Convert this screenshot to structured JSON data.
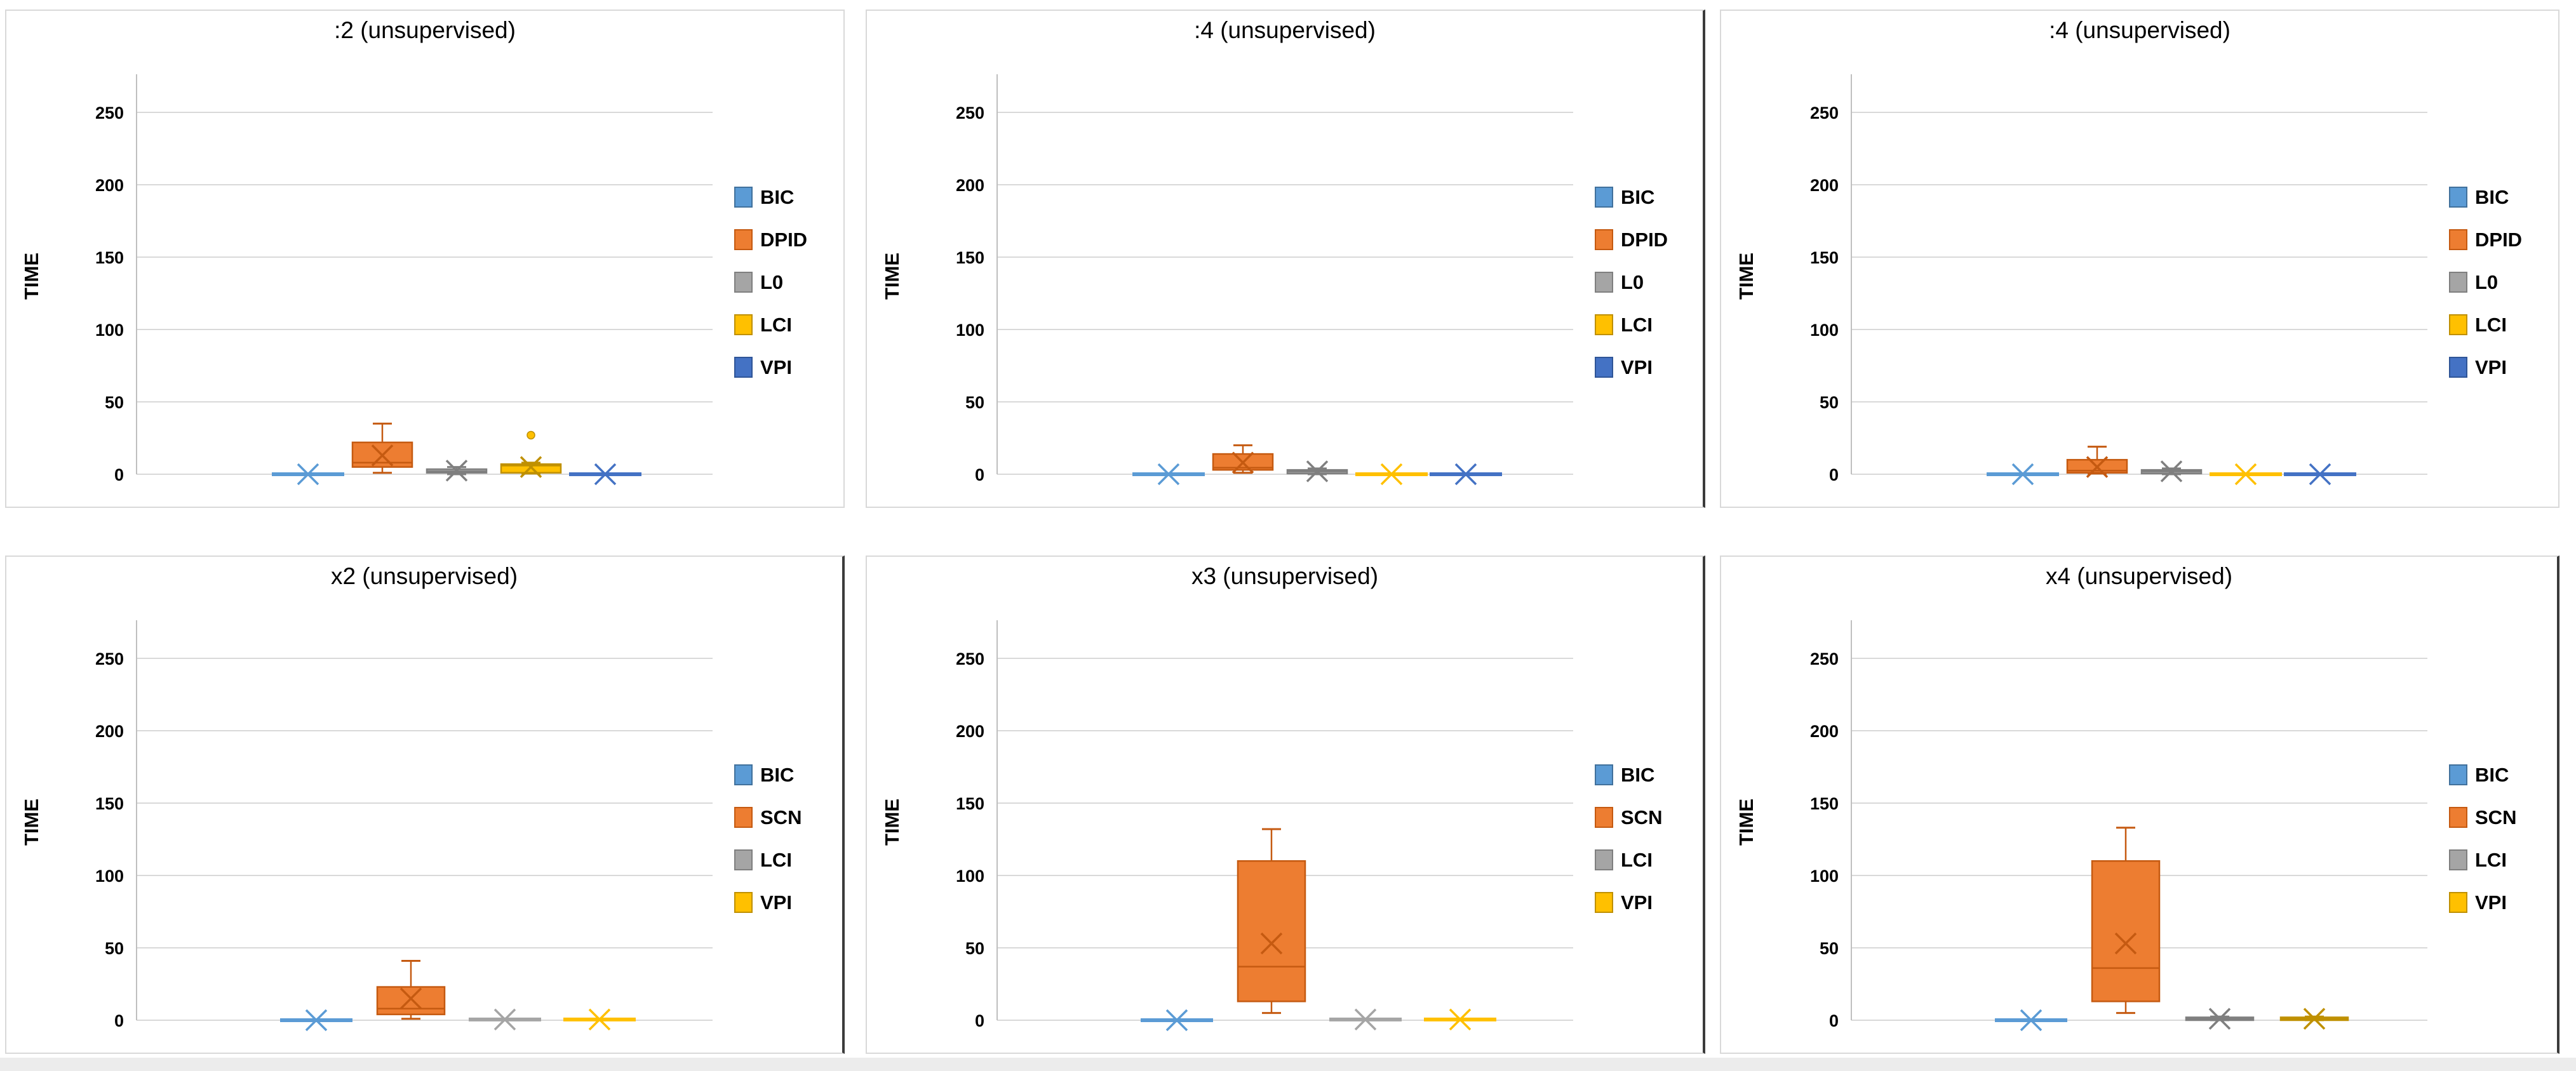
{
  "page": {
    "background": "#ffffff",
    "grid_rows": 2,
    "grid_cols": 3
  },
  "colors": {
    "blue": "#5B9BD5",
    "orange": "#ED7D31",
    "gray": "#A5A5A5",
    "gold": "#FFC000",
    "dark_blue": "#4472C4",
    "gridline": "#D9D9D9",
    "axis": "#BFBFBF",
    "panel_border": "#D9D9D9",
    "panel_border_dark": "#3B3B3B"
  },
  "chart_data": [
    {
      "type": "box",
      "title": ":2 (unsupervised)",
      "ylabel": "TIME",
      "yticks": [
        0,
        50,
        100,
        150,
        200,
        250
      ],
      "ylim": [
        0,
        270
      ],
      "grid": true,
      "legend_position": "right",
      "series": [
        {
          "name": "BIC",
          "fill": "#5B9BD5",
          "stroke": "#41719C",
          "kind": "flat",
          "value": 0,
          "mean": 0
        },
        {
          "name": "DPID",
          "fill": "#ED7D31",
          "stroke": "#C55A11",
          "kind": "box",
          "low": 1,
          "q1": 5,
          "median": 8,
          "q3": 22,
          "high": 35,
          "mean": 13
        },
        {
          "name": "L0",
          "fill": "#A5A5A5",
          "stroke": "#7F7F7F",
          "kind": "box",
          "low": 0,
          "q1": 1,
          "median": 2,
          "q3": 3.5,
          "high": 5,
          "mean": 2.5
        },
        {
          "name": "LCI",
          "fill": "#FFC000",
          "stroke": "#BF9000",
          "kind": "box",
          "low": 0.5,
          "q1": 1,
          "median": 6,
          "q3": 7,
          "high": 8,
          "mean": 5,
          "outliers": [
            27
          ]
        },
        {
          "name": "VPI",
          "fill": "#4472C4",
          "stroke": "#2F5597",
          "kind": "flat",
          "value": 0,
          "mean": 0
        }
      ]
    },
    {
      "type": "box",
      "title": ":4 (unsupervised)",
      "ylabel": "TIME",
      "yticks": [
        0,
        50,
        100,
        150,
        200,
        250
      ],
      "ylim": [
        0,
        270
      ],
      "grid": true,
      "legend_position": "right",
      "series": [
        {
          "name": "BIC",
          "fill": "#5B9BD5",
          "stroke": "#41719C",
          "kind": "flat",
          "value": 0,
          "mean": 0
        },
        {
          "name": "DPID",
          "fill": "#ED7D31",
          "stroke": "#C55A11",
          "kind": "box",
          "low": 1,
          "q1": 3,
          "median": 4.5,
          "q3": 14,
          "high": 20,
          "mean": 8
        },
        {
          "name": "L0",
          "fill": "#A5A5A5",
          "stroke": "#7F7F7F",
          "kind": "box",
          "low": 0,
          "q1": 0.5,
          "median": 2,
          "q3": 3,
          "high": 4,
          "mean": 2
        },
        {
          "name": "LCI",
          "fill": "#FFC000",
          "stroke": "#BF9000",
          "kind": "flat",
          "value": 0,
          "mean": 0
        },
        {
          "name": "VPI",
          "fill": "#4472C4",
          "stroke": "#2F5597",
          "kind": "flat",
          "value": 0,
          "mean": 0
        }
      ]
    },
    {
      "type": "box",
      "title": ":4 (unsupervised)",
      "ylabel": "TIME",
      "yticks": [
        0,
        50,
        100,
        150,
        200,
        250
      ],
      "ylim": [
        0,
        270
      ],
      "grid": true,
      "legend_position": "right",
      "series": [
        {
          "name": "BIC",
          "fill": "#5B9BD5",
          "stroke": "#41719C",
          "kind": "flat",
          "value": 0,
          "mean": 0
        },
        {
          "name": "DPID",
          "fill": "#ED7D31",
          "stroke": "#C55A11",
          "kind": "box",
          "low": 0.5,
          "q1": 1,
          "median": 2.5,
          "q3": 10,
          "high": 19,
          "mean": 5
        },
        {
          "name": "L0",
          "fill": "#A5A5A5",
          "stroke": "#7F7F7F",
          "kind": "box",
          "low": 0,
          "q1": 0.5,
          "median": 2,
          "q3": 3,
          "high": 4,
          "mean": 2
        },
        {
          "name": "LCI",
          "fill": "#FFC000",
          "stroke": "#BF9000",
          "kind": "flat",
          "value": 0,
          "mean": 0
        },
        {
          "name": "VPI",
          "fill": "#4472C4",
          "stroke": "#2F5597",
          "kind": "flat",
          "value": 0,
          "mean": 0
        }
      ]
    },
    {
      "type": "box",
      "title": "x2 (unsupervised)",
      "ylabel": "TIME",
      "yticks": [
        0,
        50,
        100,
        150,
        200,
        250
      ],
      "ylim": [
        0,
        270
      ],
      "grid": true,
      "legend_position": "right",
      "series": [
        {
          "name": "BIC",
          "fill": "#5B9BD5",
          "stroke": "#41719C",
          "kind": "flat",
          "value": 0,
          "mean": 0
        },
        {
          "name": "SCN",
          "fill": "#ED7D31",
          "stroke": "#C55A11",
          "kind": "box",
          "low": 1,
          "q1": 4,
          "median": 8,
          "q3": 23,
          "high": 41,
          "mean": 15
        },
        {
          "name": "LCI",
          "fill": "#A5A5A5",
          "stroke": "#7F7F7F",
          "kind": "flat",
          "value": 0.5,
          "mean": 0.5
        },
        {
          "name": "VPI",
          "fill": "#FFC000",
          "stroke": "#BF9000",
          "kind": "flat",
          "value": 0.5,
          "mean": 0.5
        }
      ]
    },
    {
      "type": "box",
      "title": "x3 (unsupervised)",
      "ylabel": "TIME",
      "yticks": [
        0,
        50,
        100,
        150,
        200,
        250
      ],
      "ylim": [
        0,
        270
      ],
      "grid": true,
      "legend_position": "right",
      "series": [
        {
          "name": "BIC",
          "fill": "#5B9BD5",
          "stroke": "#41719C",
          "kind": "flat",
          "value": 0,
          "mean": 0
        },
        {
          "name": "SCN",
          "fill": "#ED7D31",
          "stroke": "#C55A11",
          "kind": "box",
          "low": 5,
          "q1": 13,
          "median": 37,
          "q3": 110,
          "high": 132,
          "mean": 53
        },
        {
          "name": "LCI",
          "fill": "#A5A5A5",
          "stroke": "#7F7F7F",
          "kind": "flat",
          "value": 0.5,
          "mean": 0.5
        },
        {
          "name": "VPI",
          "fill": "#FFC000",
          "stroke": "#BF9000",
          "kind": "flat",
          "value": 0.5,
          "mean": 0.5
        }
      ]
    },
    {
      "type": "box",
      "title": "x4 (unsupervised)",
      "ylabel": "TIME",
      "yticks": [
        0,
        50,
        100,
        150,
        200,
        250
      ],
      "ylim": [
        0,
        270
      ],
      "grid": true,
      "legend_position": "right",
      "series": [
        {
          "name": "BIC",
          "fill": "#5B9BD5",
          "stroke": "#41719C",
          "kind": "flat",
          "value": 0,
          "mean": 0
        },
        {
          "name": "SCN",
          "fill": "#ED7D31",
          "stroke": "#C55A11",
          "kind": "box",
          "low": 5,
          "q1": 13,
          "median": 36,
          "q3": 110,
          "high": 133,
          "mean": 53
        },
        {
          "name": "LCI",
          "fill": "#A5A5A5",
          "stroke": "#7F7F7F",
          "kind": "box",
          "low": 0,
          "q1": 0,
          "median": 1,
          "q3": 2,
          "high": 2.5,
          "mean": 1
        },
        {
          "name": "VPI",
          "fill": "#FFC000",
          "stroke": "#BF9000",
          "kind": "box",
          "low": 0,
          "q1": 0,
          "median": 1,
          "q3": 2,
          "high": 2.5,
          "mean": 1
        }
      ]
    }
  ]
}
